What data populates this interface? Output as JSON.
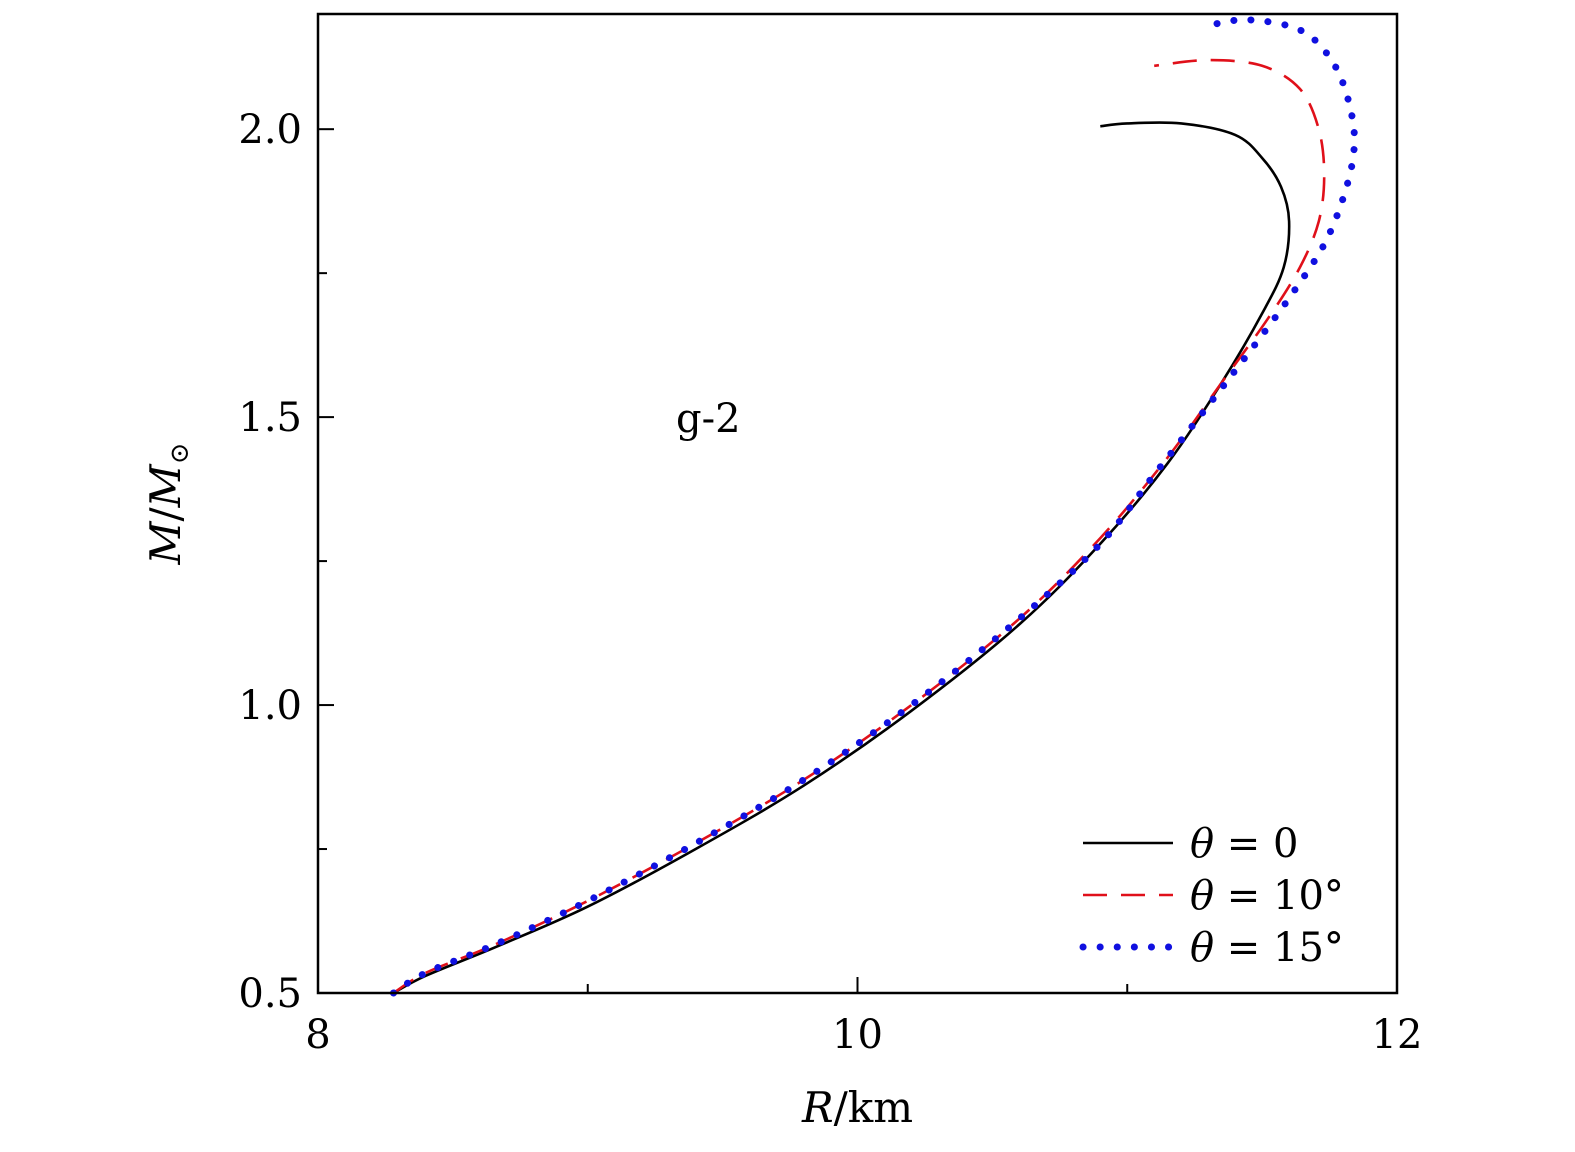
{
  "chart_data": {
    "type": "line",
    "xlabel_parts": {
      "var": "R",
      "unit": "/km"
    },
    "ylabel_parts": {
      "var": "M",
      "slash": "/",
      "sub_var": "M",
      "sub": "⊙"
    },
    "annotation": "g-2",
    "xlim": [
      8,
      12
    ],
    "ylim": [
      0.5,
      2.2
    ],
    "x_ticks": [
      8,
      10,
      12
    ],
    "x_tick_labels": [
      "8",
      "10",
      "12"
    ],
    "x_minor_ticks": [
      9,
      11
    ],
    "y_ticks": [
      0.5,
      1.0,
      1.5,
      2.0
    ],
    "y_tick_labels": [
      "0.5",
      "1.0",
      "1.5",
      "2.0"
    ],
    "y_minor_ticks": [
      0.75,
      1.25,
      1.75
    ],
    "grid": false,
    "legend_position": "bottom-right",
    "series": [
      {
        "name": "θ = 0",
        "legend_var": "θ",
        "legend_value": "= 0",
        "color": "#000000",
        "style": "solid",
        "points": [
          [
            8.28,
            0.5
          ],
          [
            8.4,
            0.53
          ],
          [
            8.66,
            0.58
          ],
          [
            9.0,
            0.65
          ],
          [
            9.4,
            0.75
          ],
          [
            9.8,
            0.86
          ],
          [
            10.2,
            0.99
          ],
          [
            10.6,
            1.14
          ],
          [
            10.9,
            1.28
          ],
          [
            11.15,
            1.42
          ],
          [
            11.35,
            1.56
          ],
          [
            11.5,
            1.68
          ],
          [
            11.58,
            1.76
          ],
          [
            11.6,
            1.84
          ],
          [
            11.57,
            1.9
          ],
          [
            11.5,
            1.95
          ],
          [
            11.4,
            1.99
          ],
          [
            11.2,
            2.01
          ],
          [
            11.0,
            2.01
          ],
          [
            10.9,
            2.005
          ]
        ]
      },
      {
        "name": "θ = 10°",
        "legend_var": "θ",
        "legend_value": "= 10°",
        "color": "#e0101a",
        "style": "dashed",
        "points": [
          [
            8.28,
            0.5
          ],
          [
            8.4,
            0.535
          ],
          [
            8.66,
            0.585
          ],
          [
            9.0,
            0.66
          ],
          [
            9.4,
            0.76
          ],
          [
            9.8,
            0.87
          ],
          [
            10.2,
            1.0
          ],
          [
            10.6,
            1.15
          ],
          [
            10.9,
            1.29
          ],
          [
            11.15,
            1.43
          ],
          [
            11.35,
            1.56
          ],
          [
            11.52,
            1.67
          ],
          [
            11.64,
            1.76
          ],
          [
            11.71,
            1.84
          ],
          [
            11.73,
            1.92
          ],
          [
            11.71,
            2.0
          ],
          [
            11.64,
            2.07
          ],
          [
            11.5,
            2.11
          ],
          [
            11.3,
            2.12
          ],
          [
            11.1,
            2.11
          ]
        ]
      },
      {
        "name": "θ = 15°",
        "legend_var": "θ",
        "legend_value": "= 15°",
        "color": "#1010e0",
        "style": "dotted",
        "points": [
          [
            8.28,
            0.5
          ],
          [
            8.4,
            0.535
          ],
          [
            8.66,
            0.585
          ],
          [
            9.0,
            0.66
          ],
          [
            9.4,
            0.76
          ],
          [
            9.8,
            0.87
          ],
          [
            10.2,
            1.0
          ],
          [
            10.6,
            1.15
          ],
          [
            10.9,
            1.28
          ],
          [
            11.1,
            1.4
          ],
          [
            11.3,
            1.52
          ],
          [
            11.48,
            1.63
          ],
          [
            11.62,
            1.72
          ],
          [
            11.73,
            1.8
          ],
          [
            11.8,
            1.88
          ],
          [
            11.84,
            1.96
          ],
          [
            11.83,
            2.03
          ],
          [
            11.77,
            2.11
          ],
          [
            11.65,
            2.17
          ],
          [
            11.45,
            2.19
          ],
          [
            11.3,
            2.18
          ]
        ]
      }
    ]
  }
}
